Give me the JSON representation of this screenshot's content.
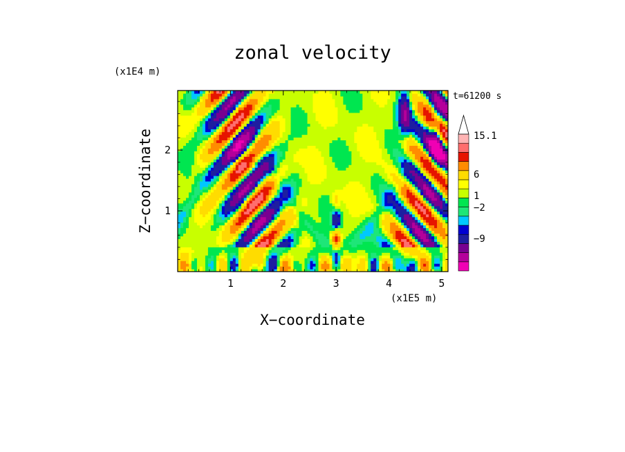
{
  "chart_data": {
    "type": "heatmap",
    "title": "zonal velocity",
    "xlabel": "X−coordinate",
    "ylabel": "Z−coordinate",
    "x_unit": "(x1E5 m)",
    "y_unit": "(x1E4 m)",
    "time_label": "t=61200 s",
    "xlim": [
      0.0,
      5.12
    ],
    "ylim": [
      0.0,
      2.98
    ],
    "x_ticks": [
      1,
      2,
      3,
      4,
      5
    ],
    "y_ticks": [
      1,
      2
    ],
    "x_tick_labels": [
      "1",
      "2",
      "3",
      "4",
      "5"
    ],
    "y_tick_labels": [
      "1",
      "2"
    ],
    "colorbar": {
      "levels": [
        -15,
        -12,
        -9,
        -6,
        -3,
        -2,
        -1,
        0,
        1,
        2,
        3,
        6,
        9,
        12,
        15.1
      ],
      "colors": [
        "#f000b4",
        "#b4009b",
        "#780091",
        "#1e1ea0",
        "#0000d2",
        "#00c8ff",
        "#1ee678",
        "#00e650",
        "#c8ff00",
        "#ffff00",
        "#ffdc00",
        "#ff8c00",
        "#e61400",
        "#ff6e6e",
        "#ffb4b4"
      ],
      "labeled_values": [
        "15.1",
        "6",
        "1",
        "−2",
        "−9"
      ],
      "extend": "max"
    }
  }
}
